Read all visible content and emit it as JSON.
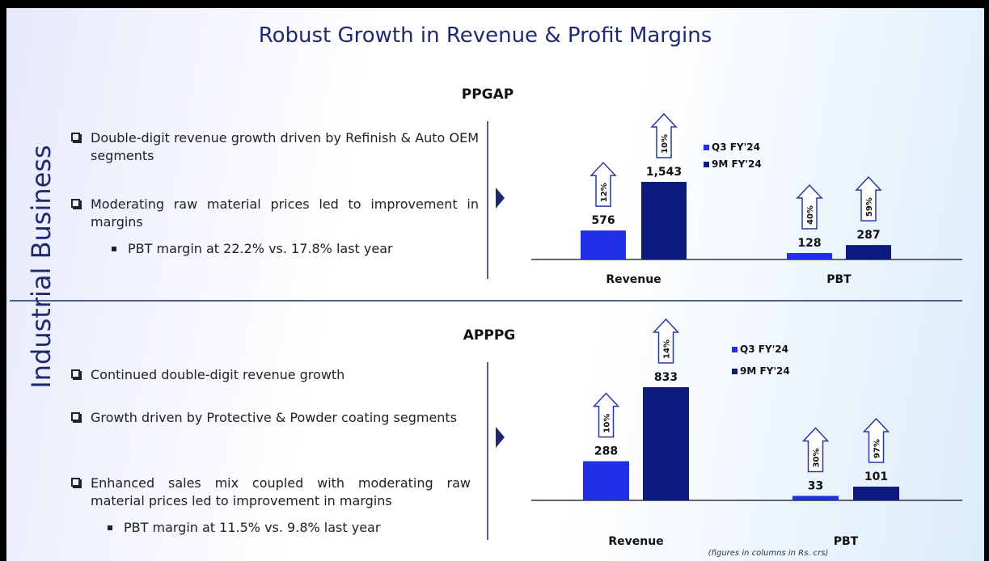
{
  "title": "Robust Growth in Revenue & Profit Margins",
  "side_label": "Industrial Business",
  "sections": [
    {
      "bullets": [
        {
          "text": "Double-digit revenue growth driven by Refinish & Auto OEM segments",
          "sub": []
        },
        {
          "text": "Moderating raw material prices led to improvement in margins",
          "sub": [
            "PBT margin at 22.2% vs. 17.8% last year"
          ]
        }
      ]
    },
    {
      "bullets": [
        {
          "text": "Continued double-digit revenue growth",
          "sub": []
        },
        {
          "text": "Growth driven by Protective & Powder coating segments",
          "sub": []
        },
        {
          "text": "Enhanced sales mix coupled with moderating raw material prices led to improvement in margins",
          "sub": [
            "PBT margin at 11.5% vs. 9.8% last year"
          ]
        }
      ]
    }
  ],
  "chart_data": [
    {
      "type": "bar",
      "title": "PPGAP",
      "categories": [
        "Revenue",
        "PBT"
      ],
      "series": [
        {
          "name": "Q3 FY'24",
          "color": "#1f2fe6",
          "values": [
            576,
            128
          ],
          "growth": [
            12,
            40
          ],
          "growth_labels": [
            "12%",
            "40%"
          ]
        },
        {
          "name": "9M FY'24",
          "color": "#0d1a80",
          "values": [
            1543,
            287
          ],
          "value_labels": [
            "1,543",
            "287"
          ],
          "growth": [
            10,
            59
          ],
          "growth_labels": [
            "10%",
            "59%"
          ]
        }
      ]
    },
    {
      "type": "bar",
      "title": "APPPG",
      "categories": [
        "Revenue",
        "PBT"
      ],
      "series": [
        {
          "name": "Q3 FY'24",
          "color": "#1f2fe6",
          "values": [
            288,
            33
          ],
          "growth": [
            10,
            30
          ],
          "growth_labels": [
            "10%",
            "30%"
          ]
        },
        {
          "name": "9M FY'24",
          "color": "#0d1a80",
          "values": [
            833,
            101
          ],
          "growth": [
            14,
            97
          ],
          "growth_labels": [
            "14%",
            "97%"
          ]
        }
      ]
    }
  ],
  "footnote": "(figures in columns in Rs. crs)"
}
